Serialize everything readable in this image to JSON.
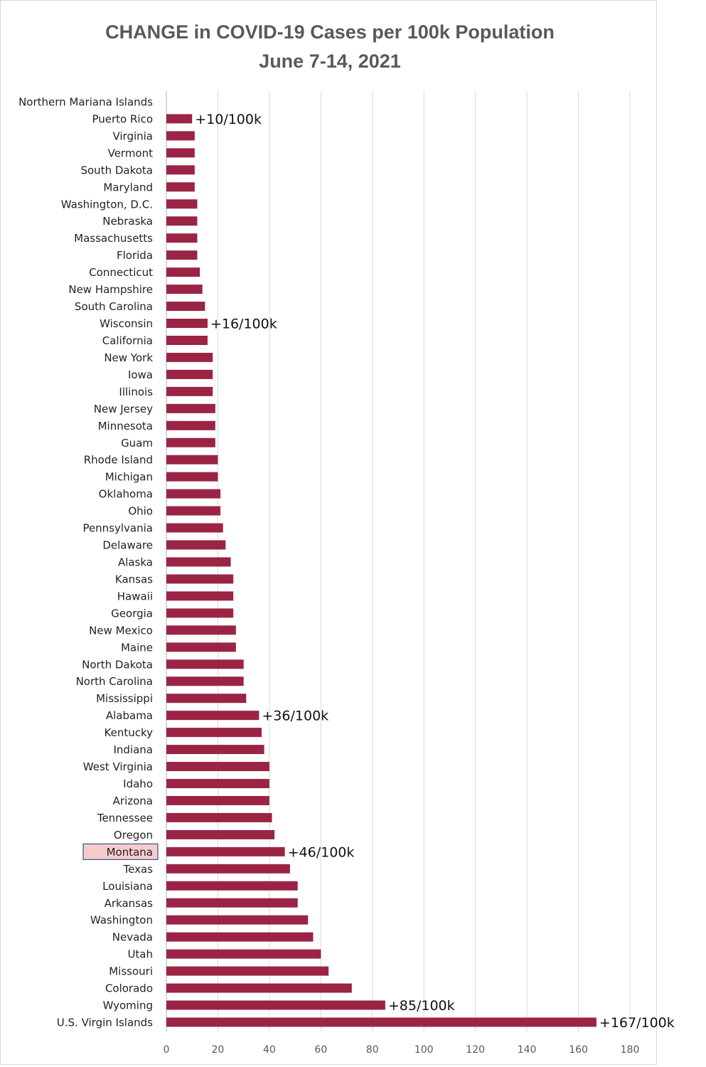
{
  "chart_data": {
    "type": "bar",
    "orientation": "horizontal",
    "title": "CHANGE in COVID-19 Cases per 100k Population",
    "subtitle": "June 7-14, 2021",
    "xlim": [
      0,
      180
    ],
    "x_ticks": [
      0,
      20,
      40,
      60,
      80,
      100,
      120,
      140,
      160,
      180
    ],
    "grid": "vertical",
    "bar_color": "#9b2445",
    "highlight_color": "#f8cbcb",
    "highlight_border": "#2f5597",
    "highlighted_category": "Montana",
    "categories": [
      "Northern Mariana Islands",
      "Puerto Rico",
      "Virginia",
      "Vermont",
      "South Dakota",
      "Maryland",
      "Washington, D.C.",
      "Nebraska",
      "Massachusetts",
      "Florida",
      "Connecticut",
      "New Hampshire",
      "South Carolina",
      "Wisconsin",
      "California",
      "New York",
      "Iowa",
      "Illinois",
      "New Jersey",
      "Minnesota",
      "Guam",
      "Rhode Island",
      "Michigan",
      "Oklahoma",
      "Ohio",
      "Pennsylvania",
      "Delaware",
      "Alaska",
      "Kansas",
      "Hawaii",
      "Georgia",
      "New Mexico",
      "Maine",
      "North Dakota",
      "North Carolina",
      "Mississippi",
      "Alabama",
      "Kentucky",
      "Indiana",
      "West Virginia",
      "Idaho",
      "Arizona",
      "Tennessee",
      "Oregon",
      "Montana",
      "Texas",
      "Louisiana",
      "Arkansas",
      "Washington",
      "Nevada",
      "Utah",
      "Missouri",
      "Colorado",
      "Wyoming",
      "U.S. Virgin Islands"
    ],
    "values": [
      0,
      10,
      11,
      11,
      11,
      11,
      12,
      12,
      12,
      12,
      13,
      14,
      15,
      16,
      16,
      18,
      18,
      18,
      19,
      19,
      19,
      20,
      20,
      21,
      21,
      22,
      23,
      25,
      26,
      26,
      26,
      27,
      27,
      30,
      30,
      31,
      36,
      37,
      38,
      40,
      40,
      40,
      41,
      42,
      46,
      48,
      51,
      51,
      55,
      57,
      60,
      63,
      72,
      85,
      167
    ],
    "annotations": [
      {
        "category": "Puerto Rico",
        "text": "+10/100k"
      },
      {
        "category": "Wisconsin",
        "text": "+16/100k"
      },
      {
        "category": "Alabama",
        "text": "+36/100k"
      },
      {
        "category": "Montana",
        "text": "+46/100k"
      },
      {
        "category": "Wyoming",
        "text": "+85/100k"
      },
      {
        "category": "U.S. Virgin Islands",
        "text": "+167/100k"
      }
    ]
  }
}
